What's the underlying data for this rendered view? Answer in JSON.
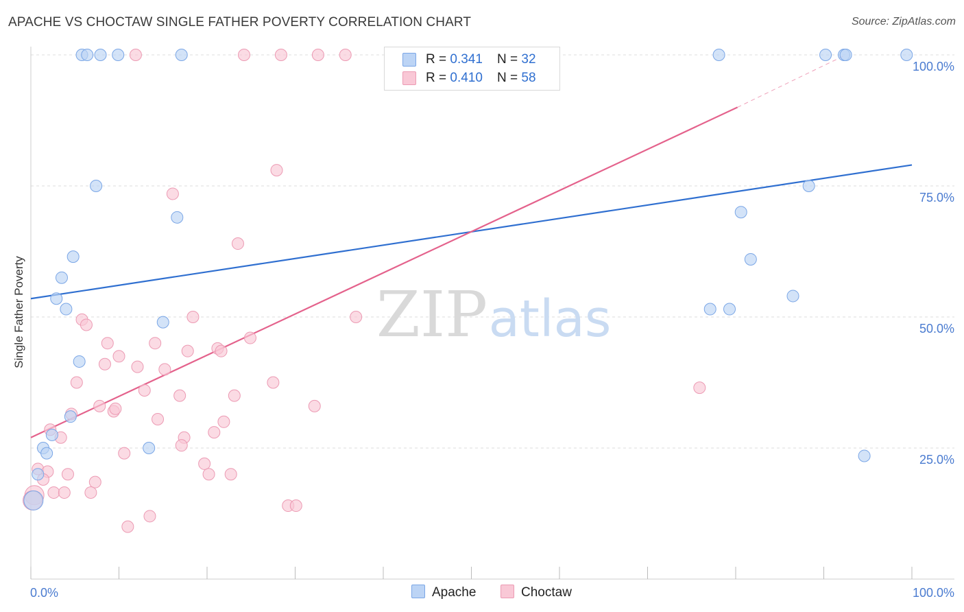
{
  "title": "APACHE VS CHOCTAW SINGLE FATHER POVERTY CORRELATION CHART",
  "source": "Source: ZipAtlas.com",
  "watermark": {
    "zip": "ZIP",
    "atlas": "atlas"
  },
  "colors": {
    "apache_fill": "#bcd4f5",
    "apache_stroke": "#7aa6e6",
    "apache_line": "#2f6fd0",
    "choctaw_fill": "#f9c8d6",
    "choctaw_stroke": "#ec9ab3",
    "choctaw_line": "#e4628c",
    "axis_label": "#4a7bd0",
    "grid": "#dddddd"
  },
  "legend": {
    "apache": {
      "r_label": "R = ",
      "r_value": "0.341",
      "n_label": "N = ",
      "n_value": "32"
    },
    "choctaw": {
      "r_label": "R = ",
      "r_value": "0.410",
      "n_label": "N = ",
      "n_value": "58"
    }
  },
  "bottom_legend": {
    "apache": "Apache",
    "choctaw": "Choctaw"
  },
  "chart_data": {
    "type": "scatter",
    "title": "APACHE VS CHOCTAW SINGLE FATHER POVERTY CORRELATION CHART",
    "xlabel": "",
    "ylabel": "Single Father Poverty",
    "xlim": [
      0,
      100
    ],
    "ylim": [
      0,
      100
    ],
    "x_tick_labels": [
      {
        "value": 0,
        "label": "0.0%"
      },
      {
        "value": 100,
        "label": "100.0%"
      }
    ],
    "y_tick_labels": [
      {
        "value": 25,
        "label": "25.0%"
      },
      {
        "value": 50,
        "label": "50.0%"
      },
      {
        "value": 75,
        "label": "75.0%"
      },
      {
        "value": 100,
        "label": "100.0%"
      }
    ],
    "grid_y": [
      25,
      50,
      75,
      100
    ],
    "series": [
      {
        "name": "Apache",
        "r": 0.341,
        "n": 32,
        "points": [
          [
            5.8,
            100
          ],
          [
            6.4,
            100
          ],
          [
            7.9,
            100
          ],
          [
            9.9,
            100
          ],
          [
            17.1,
            100
          ],
          [
            78.1,
            100
          ],
          [
            90.2,
            100
          ],
          [
            92.3,
            100
          ],
          [
            92.5,
            100
          ],
          [
            99.4,
            100
          ],
          [
            7.4,
            75
          ],
          [
            16.6,
            69
          ],
          [
            4.8,
            61.5
          ],
          [
            3.5,
            57.5
          ],
          [
            2.9,
            53.5
          ],
          [
            4.0,
            51.5
          ],
          [
            15.0,
            49
          ],
          [
            5.5,
            41.5
          ],
          [
            4.5,
            31
          ],
          [
            2.4,
            27.5
          ],
          [
            1.4,
            25
          ],
          [
            1.8,
            24
          ],
          [
            13.4,
            25
          ],
          [
            0.8,
            20
          ],
          [
            0.3,
            15
          ],
          [
            88.3,
            75
          ],
          [
            80.6,
            70
          ],
          [
            81.7,
            61
          ],
          [
            77.1,
            51.5
          ],
          [
            79.3,
            51.5
          ],
          [
            86.5,
            54
          ],
          [
            94.6,
            23.5
          ]
        ],
        "trend": {
          "x": [
            0,
            100
          ],
          "y": [
            53.5,
            79
          ]
        }
      },
      {
        "name": "Choctaw",
        "r": 0.41,
        "n": 58,
        "points": [
          [
            11.9,
            100
          ],
          [
            24.2,
            100
          ],
          [
            28.4,
            100
          ],
          [
            32.6,
            100
          ],
          [
            35.7,
            100
          ],
          [
            27.9,
            78
          ],
          [
            16.1,
            73.5
          ],
          [
            23.5,
            64
          ],
          [
            36.9,
            50
          ],
          [
            18.4,
            50
          ],
          [
            5.8,
            49.5
          ],
          [
            6.3,
            48.5
          ],
          [
            8.7,
            45
          ],
          [
            14.1,
            45
          ],
          [
            24.9,
            46
          ],
          [
            10.0,
            42.5
          ],
          [
            8.4,
            41
          ],
          [
            12.1,
            40.5
          ],
          [
            15.2,
            40
          ],
          [
            17.8,
            43.5
          ],
          [
            21.2,
            44
          ],
          [
            21.6,
            43.5
          ],
          [
            5.2,
            37.5
          ],
          [
            27.5,
            37.5
          ],
          [
            12.9,
            36
          ],
          [
            16.9,
            35
          ],
          [
            23.1,
            35
          ],
          [
            7.8,
            33
          ],
          [
            9.4,
            32
          ],
          [
            9.6,
            32.5
          ],
          [
            32.2,
            33
          ],
          [
            4.6,
            31.5
          ],
          [
            14.4,
            30.5
          ],
          [
            21.9,
            30
          ],
          [
            2.2,
            28.5
          ],
          [
            3.4,
            27
          ],
          [
            20.8,
            28
          ],
          [
            17.4,
            27
          ],
          [
            17.1,
            25.5
          ],
          [
            10.6,
            24
          ],
          [
            19.7,
            22
          ],
          [
            0.8,
            21
          ],
          [
            1.9,
            20.5
          ],
          [
            4.2,
            20
          ],
          [
            20.2,
            20
          ],
          [
            22.7,
            20
          ],
          [
            1.4,
            19
          ],
          [
            7.3,
            18.5
          ],
          [
            2.6,
            16.5
          ],
          [
            3.8,
            16.5
          ],
          [
            6.8,
            16.5
          ],
          [
            0.4,
            16
          ],
          [
            0.2,
            15
          ],
          [
            29.2,
            14
          ],
          [
            30.1,
            14
          ],
          [
            13.5,
            12
          ],
          [
            11.0,
            10
          ],
          [
            75.9,
            36.5
          ]
        ],
        "trend": {
          "x": [
            0,
            80.2
          ],
          "y": [
            27,
            90
          ]
        },
        "trend_extension": {
          "x": [
            80.2,
            92.5
          ],
          "y": [
            90,
            100
          ]
        }
      }
    ]
  }
}
